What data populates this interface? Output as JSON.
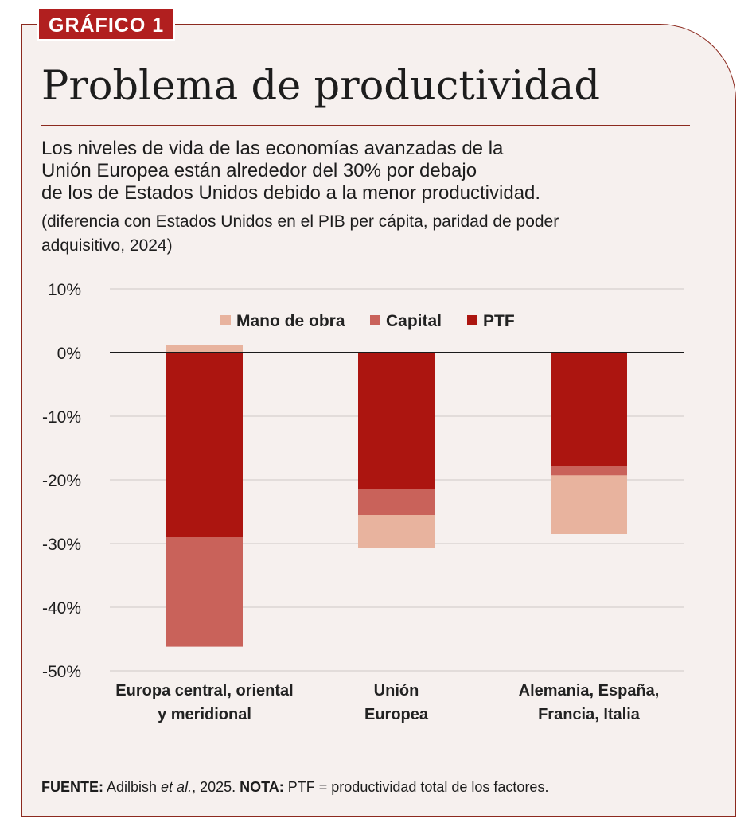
{
  "tag": "GRÁFICO 1",
  "title": "Problema de productividad",
  "subtitle": [
    "Los niveles de vida de las economías avanzadas de la",
    "Unión Europea están alrededor del 30% por debajo",
    "de los de Estados Unidos debido a la menor productividad."
  ],
  "note": [
    "(diferencia con Estados Unidos en el PIB per cápita, paridad de poder",
    "adquisitivo, 2024)"
  ],
  "source": {
    "fuente_label": "FUENTE:",
    "fuente_text_a": " Adilbish ",
    "fuente_italic": "et al.",
    "fuente_text_b": ", 2025. ",
    "nota_label": "NOTA:",
    "nota_text": " PTF = productividad total de los factores."
  },
  "colors": {
    "mano_de_obra": "#e8b39e",
    "capital": "#c9625a",
    "ptf": "#ac1510",
    "grid": "#dcd6d3",
    "zero": "#1a1a1a"
  },
  "chart_data": {
    "type": "bar",
    "stacked": true,
    "ylim": [
      -50,
      10
    ],
    "yticks": [
      10,
      0,
      -10,
      -20,
      -30,
      -40,
      -50
    ],
    "ytick_labels": [
      "10%",
      "0%",
      "-10%",
      "-20%",
      "-30%",
      "-40%",
      "-50%"
    ],
    "categories": [
      [
        "Europa central, oriental",
        "y meridional"
      ],
      [
        "Unión",
        "Europea"
      ],
      [
        "Alemania, España,",
        "Francia, Italia"
      ]
    ],
    "legend_position": "top-center",
    "series": [
      {
        "name": "Mano de obra",
        "color_key": "mano_de_obra",
        "values": [
          1.2,
          -5.2,
          -9.2
        ]
      },
      {
        "name": "Capital",
        "color_key": "capital",
        "values": [
          -17.2,
          -4.0,
          -1.5
        ]
      },
      {
        "name": "PTF",
        "color_key": "ptf",
        "values": [
          -29.0,
          -21.5,
          -17.8
        ]
      }
    ],
    "stack_order": [
      "PTF",
      "Capital",
      "Mano de obra"
    ]
  }
}
